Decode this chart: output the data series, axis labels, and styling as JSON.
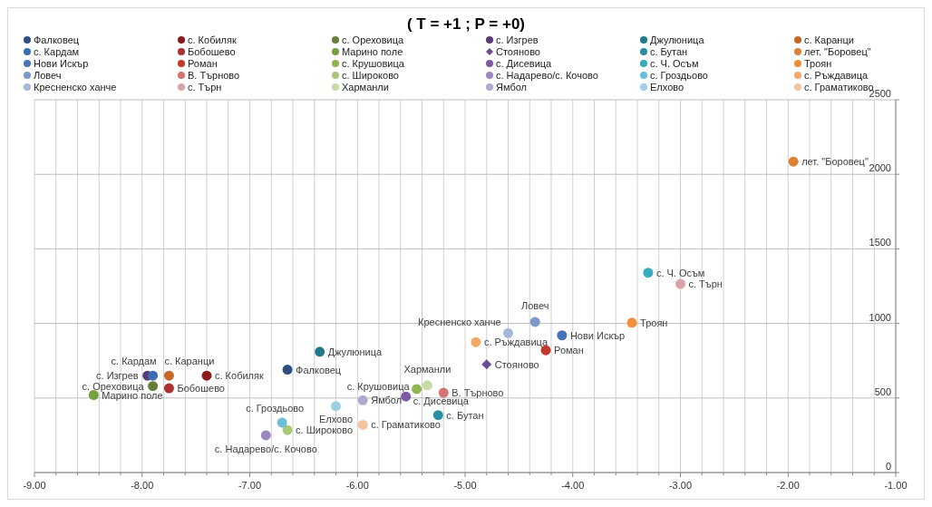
{
  "chart_data": {
    "type": "scatter",
    "title": "( T = +1 ; P = +0)",
    "legend": "top",
    "grid": true,
    "marker": "circle",
    "xlim": [
      -9,
      -1
    ],
    "ylim": [
      0,
      2500
    ],
    "xticks": [
      {
        "value": -9,
        "label": "-9.00"
      },
      {
        "value": -8.8,
        "label": null
      },
      {
        "value": -8.6,
        "label": null
      },
      {
        "value": -8.4,
        "label": null
      },
      {
        "value": -8.2,
        "label": null
      },
      {
        "value": -8,
        "label": "-8.00"
      },
      {
        "value": -7.8,
        "label": null
      },
      {
        "value": -7.6,
        "label": null
      },
      {
        "value": -7.4,
        "label": null
      },
      {
        "value": -7.2,
        "label": null
      },
      {
        "value": -7,
        "label": "-7.00"
      },
      {
        "value": -6.8,
        "label": null
      },
      {
        "value": -6.6,
        "label": null
      },
      {
        "value": -6.4,
        "label": null
      },
      {
        "value": -6.2,
        "label": null
      },
      {
        "value": -6,
        "label": "-6.00"
      },
      {
        "value": -5.8,
        "label": null
      },
      {
        "value": -5.6,
        "label": null
      },
      {
        "value": -5.4,
        "label": null
      },
      {
        "value": -5.2,
        "label": null
      },
      {
        "value": -5,
        "label": "-5.00"
      },
      {
        "value": -4.8,
        "label": null
      },
      {
        "value": -4.6,
        "label": null
      },
      {
        "value": -4.4,
        "label": null
      },
      {
        "value": -4.2,
        "label": null
      },
      {
        "value": -4,
        "label": "-4.00"
      },
      {
        "value": -3.8,
        "label": null
      },
      {
        "value": -3.6,
        "label": null
      },
      {
        "value": -3.4,
        "label": null
      },
      {
        "value": -3.2,
        "label": null
      },
      {
        "value": -3,
        "label": "-3.00"
      },
      {
        "value": -2.8,
        "label": null
      },
      {
        "value": -2.6,
        "label": null
      },
      {
        "value": -2.4,
        "label": null
      },
      {
        "value": -2.2,
        "label": null
      },
      {
        "value": -2,
        "label": "-2.00"
      },
      {
        "value": -1.8,
        "label": null
      },
      {
        "value": -1.6,
        "label": null
      },
      {
        "value": -1.4,
        "label": null
      },
      {
        "value": -1.2,
        "label": null
      },
      {
        "value": -1,
        "label": "-1.00"
      }
    ],
    "yticks": [
      0,
      500,
      1000,
      1500,
      2000,
      2500
    ],
    "series": [
      {
        "name": "Фалковец",
        "color": "#2e4f7f",
        "x": [
          -6.65
        ],
        "values": [
          690
        ]
      },
      {
        "name": "с. Кобиляк",
        "color": "#8b1a1a",
        "x": [
          -7.4
        ],
        "values": [
          650
        ]
      },
      {
        "name": "с. Ореховица",
        "color": "#667f3a",
        "x": [
          -7.9
        ],
        "values": [
          580
        ]
      },
      {
        "name": "с. Изгрев",
        "color": "#5a3c78",
        "x": [
          -7.95
        ],
        "values": [
          650
        ]
      },
      {
        "name": "Джулюница",
        "color": "#217a8a",
        "x": [
          -6.35
        ],
        "values": [
          810
        ]
      },
      {
        "name": "с. Каранци",
        "color": "#c46a26",
        "x": [
          -7.75
        ],
        "values": [
          650
        ]
      },
      {
        "name": "с. Кардам",
        "color": "#3a6eb0",
        "x": [
          -7.9
        ],
        "values": [
          650
        ]
      },
      {
        "name": "Бобошево",
        "color": "#a83232",
        "x": [
          -7.75
        ],
        "values": [
          565
        ]
      },
      {
        "name": "Марино поле",
        "color": "#77a040",
        "x": [
          -8.45
        ],
        "values": [
          520
        ]
      },
      {
        "name": "Стояново",
        "color": "#6b4e91",
        "marker": "diamond",
        "x": [
          -4.8
        ],
        "values": [
          725
        ]
      },
      {
        "name": "с. Бутан",
        "color": "#2a8fa3",
        "x": [
          -5.25
        ],
        "values": [
          385
        ]
      },
      {
        "name": "лет. \"Боровец\"",
        "color": "#dd8232",
        "x": [
          -1.95
        ],
        "values": [
          2085
        ]
      },
      {
        "name": "Нови Искър",
        "color": "#4672b8",
        "x": [
          -4.1
        ],
        "values": [
          920
        ]
      },
      {
        "name": "Роман",
        "color": "#c0392b",
        "x": [
          -4.25
        ],
        "values": [
          820
        ]
      },
      {
        "name": "с. Крушовица",
        "color": "#8fb650",
        "x": [
          -5.45
        ],
        "values": [
          560
        ]
      },
      {
        "name": "с. Дисевица",
        "color": "#7e5aa3",
        "x": [
          -5.55
        ],
        "values": [
          510
        ]
      },
      {
        "name": "с. Ч. Осъм",
        "color": "#3aabbf",
        "x": [
          -3.3
        ],
        "values": [
          1340
        ]
      },
      {
        "name": "Троян",
        "color": "#f08f3a",
        "x": [
          -3.45
        ],
        "values": [
          1005
        ]
      },
      {
        "name": "Ловеч",
        "color": "#7b99c9",
        "x": [
          -4.35
        ],
        "values": [
          1010
        ]
      },
      {
        "name": "В. Търново",
        "color": "#d27474",
        "x": [
          -5.2
        ],
        "values": [
          535
        ]
      },
      {
        "name": "с. Широково",
        "color": "#a9c97a",
        "x": [
          -6.65
        ],
        "values": [
          285
        ]
      },
      {
        "name": "с. Надарево/с. Кочово",
        "color": "#9e87c1",
        "x": [
          -6.85
        ],
        "values": [
          250
        ]
      },
      {
        "name": "с. Гроздьово",
        "color": "#6cbdd8",
        "x": [
          -6.7
        ],
        "values": [
          335
        ]
      },
      {
        "name": "с. Ръждавица",
        "color": "#f2a868",
        "x": [
          -4.9
        ],
        "values": [
          875
        ]
      },
      {
        "name": "Кресненско ханче",
        "color": "#a5b8d9",
        "x": [
          -4.6
        ],
        "values": [
          935
        ]
      },
      {
        "name": "с. Търн",
        "color": "#dba3a8",
        "x": [
          -3
        ],
        "values": [
          1265
        ]
      },
      {
        "name": "Харманли",
        "color": "#c6dba5",
        "x": [
          -5.35
        ],
        "values": [
          585
        ]
      },
      {
        "name": "Ямбол",
        "color": "#b5a8cf",
        "x": [
          -5.95
        ],
        "values": [
          485
        ]
      },
      {
        "name": "Елхово",
        "color": "#9dd0e4",
        "x": [
          -6.2
        ],
        "values": [
          445
        ]
      },
      {
        "name": "с. Граматиково",
        "color": "#f6c3a0",
        "x": [
          -5.95
        ],
        "values": [
          320
        ]
      }
    ]
  }
}
